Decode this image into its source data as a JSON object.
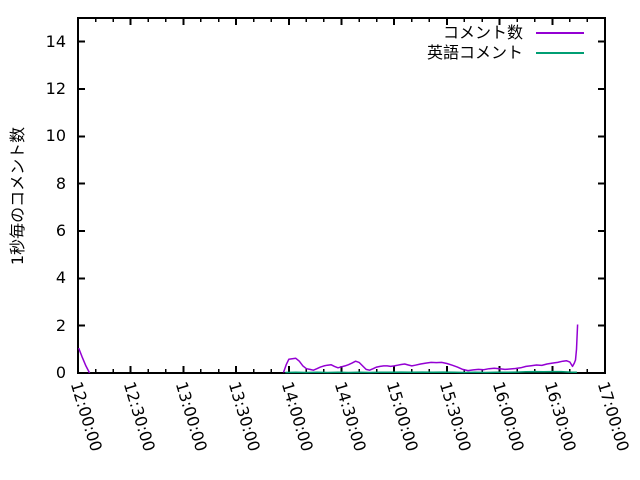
{
  "chart_data": {
    "type": "line",
    "title": "",
    "xlabel": "",
    "ylabel": "1秒毎のコメント数",
    "x_unit": "minutes_after_12:00:00",
    "x_range_minutes": [
      0,
      300
    ],
    "x_major_tick_minutes": 30,
    "x_minor_tick_minutes": 10,
    "x_tick_labels": [
      "12:00:00",
      "12:30:00",
      "13:00:00",
      "13:30:00",
      "14:00:00",
      "14:30:00",
      "15:00:00",
      "15:30:00",
      "16:00:00",
      "16:30:00",
      "17:00:00"
    ],
    "ylim": [
      0,
      15
    ],
    "y_ticks": [
      0,
      2,
      4,
      6,
      8,
      10,
      12,
      14
    ],
    "grid": false,
    "legend_position": "top-right-inside",
    "axis_color": "#000000",
    "series": [
      {
        "name": "コメント数",
        "color": "#9400d3",
        "segments": [
          [
            [
              0.4,
              1.05
            ],
            [
              2.2,
              0.7
            ],
            [
              4.5,
              0.3
            ],
            [
              6.6,
              0.0
            ]
          ],
          [
            [
              117,
              0.02
            ],
            [
              118.5,
              0.35
            ],
            [
              120,
              0.58
            ],
            [
              122,
              0.6
            ],
            [
              124,
              0.62
            ],
            [
              126,
              0.5
            ],
            [
              128,
              0.3
            ],
            [
              130,
              0.18
            ],
            [
              132,
              0.15
            ],
            [
              134,
              0.12
            ],
            [
              136,
              0.18
            ],
            [
              138,
              0.25
            ],
            [
              140,
              0.3
            ],
            [
              142,
              0.33
            ],
            [
              144,
              0.35
            ],
            [
              146,
              0.28
            ],
            [
              148,
              0.22
            ],
            [
              150,
              0.26
            ],
            [
              152,
              0.3
            ],
            [
              154,
              0.35
            ],
            [
              156,
              0.42
            ],
            [
              158,
              0.5
            ],
            [
              160,
              0.45
            ],
            [
              162,
              0.3
            ],
            [
              164,
              0.15
            ],
            [
              166,
              0.12
            ],
            [
              168,
              0.18
            ],
            [
              170,
              0.25
            ],
            [
              172,
              0.28
            ],
            [
              174,
              0.3
            ],
            [
              176,
              0.3
            ],
            [
              178,
              0.28
            ],
            [
              180,
              0.3
            ],
            [
              182,
              0.33
            ],
            [
              184,
              0.36
            ],
            [
              186,
              0.38
            ],
            [
              188,
              0.34
            ],
            [
              190,
              0.3
            ],
            [
              192,
              0.33
            ],
            [
              195,
              0.38
            ],
            [
              198,
              0.42
            ],
            [
              201,
              0.45
            ],
            [
              204,
              0.44
            ],
            [
              207,
              0.45
            ],
            [
              210,
              0.4
            ],
            [
              213,
              0.33
            ],
            [
              216,
              0.25
            ],
            [
              219,
              0.15
            ],
            [
              222,
              0.1
            ],
            [
              225,
              0.13
            ],
            [
              228,
              0.15
            ],
            [
              231,
              0.14
            ],
            [
              234,
              0.18
            ],
            [
              237,
              0.2
            ],
            [
              240,
              0.18
            ],
            [
              243,
              0.15
            ],
            [
              246,
              0.17
            ],
            [
              249,
              0.19
            ],
            [
              252,
              0.22
            ],
            [
              255,
              0.28
            ],
            [
              258,
              0.31
            ],
            [
              261,
              0.34
            ],
            [
              264,
              0.32
            ],
            [
              267,
              0.38
            ],
            [
              270,
              0.42
            ],
            [
              273,
              0.45
            ],
            [
              276,
              0.5
            ],
            [
              278,
              0.52
            ],
            [
              280,
              0.46
            ],
            [
              281.5,
              0.28
            ],
            [
              282.5,
              0.42
            ],
            [
              283.2,
              0.55
            ],
            [
              283.8,
              1.0
            ],
            [
              284.4,
              2.05
            ]
          ]
        ]
      },
      {
        "name": "英語コメント",
        "color": "#009e73",
        "segments": [
          [
            [
              118,
              0.02
            ],
            [
              124,
              0.03
            ],
            [
              130,
              0.02
            ],
            [
              136,
              0.03
            ],
            [
              142,
              0.02
            ],
            [
              148,
              0.03
            ],
            [
              154,
              0.02
            ],
            [
              160,
              0.03
            ],
            [
              166,
              0.02
            ],
            [
              172,
              0.03
            ],
            [
              178,
              0.03
            ],
            [
              184,
              0.04
            ],
            [
              190,
              0.03
            ],
            [
              196,
              0.04
            ],
            [
              202,
              0.03
            ],
            [
              208,
              0.04
            ],
            [
              214,
              0.03
            ],
            [
              220,
              0.02
            ],
            [
              226,
              0.03
            ],
            [
              232,
              0.02
            ],
            [
              238,
              0.03
            ],
            [
              244,
              0.03
            ],
            [
              250,
              0.04
            ],
            [
              255,
              0.05
            ],
            [
              260,
              0.06
            ],
            [
              265,
              0.05
            ],
            [
              270,
              0.06
            ],
            [
              275,
              0.06
            ],
            [
              280,
              0.04
            ],
            [
              284,
              0.03
            ]
          ]
        ]
      }
    ]
  }
}
